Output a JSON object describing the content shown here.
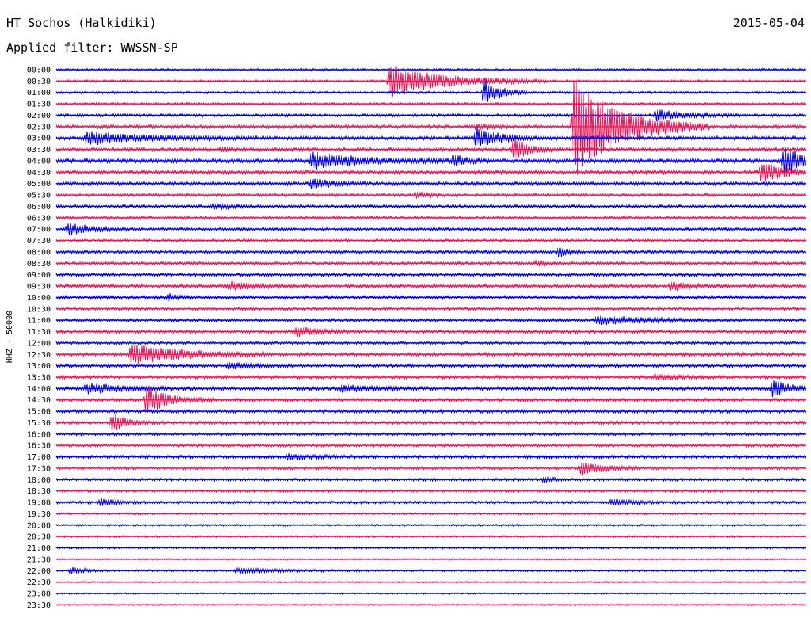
{
  "header": {
    "station": "HT Sochos (Halkidiki)",
    "date": "2015-05-04",
    "filter_label": "Applied filter: WWSSN-SP"
  },
  "chart_data": {
    "type": "line",
    "title": "HT Sochos (Halkidiki)",
    "ylabel": "HHZ - 50000",
    "xlabel": "",
    "colors": [
      "#0000ee",
      "#ee1155"
    ],
    "rows": [
      {
        "label": "00:00",
        "color": "#0000ee",
        "noise": 1.2,
        "events": []
      },
      {
        "label": "00:30",
        "color": "#ee1155",
        "noise": 1.2,
        "events": [
          {
            "t": 0.445,
            "amp": 20,
            "dur": 0.07
          }
        ]
      },
      {
        "label": "01:00",
        "color": "#0000ee",
        "noise": 1.2,
        "events": [
          {
            "t": 0.57,
            "amp": 18,
            "dur": 0.02
          }
        ]
      },
      {
        "label": "01:30",
        "color": "#ee1155",
        "noise": 1.2,
        "events": []
      },
      {
        "label": "02:00",
        "color": "#0000ee",
        "noise": 1.5,
        "events": [
          {
            "t": 0.8,
            "amp": 7,
            "dur": 0.04
          }
        ]
      },
      {
        "label": "02:30",
        "color": "#ee1155",
        "noise": 1.8,
        "events": [
          {
            "t": 0.69,
            "amp": 60,
            "dur": 0.06
          },
          {
            "t": 0.56,
            "amp": 3,
            "dur": 0.02
          }
        ]
      },
      {
        "label": "03:00",
        "color": "#0000ee",
        "noise": 1.8,
        "events": [
          {
            "t": 0.04,
            "amp": 8,
            "dur": 0.08
          },
          {
            "t": 0.56,
            "amp": 14,
            "dur": 0.03
          }
        ]
      },
      {
        "label": "03:30",
        "color": "#ee1155",
        "noise": 1.8,
        "events": [
          {
            "t": 0.61,
            "amp": 15,
            "dur": 0.02
          },
          {
            "t": 0.22,
            "amp": 3,
            "dur": 0.01
          }
        ]
      },
      {
        "label": "04:00",
        "color": "#0000ee",
        "noise": 2.0,
        "events": [
          {
            "t": 0.34,
            "amp": 10,
            "dur": 0.07
          },
          {
            "t": 0.53,
            "amp": 6,
            "dur": 0.02
          },
          {
            "t": 0.97,
            "amp": 20,
            "dur": 0.03
          }
        ]
      },
      {
        "label": "04:30",
        "color": "#ee1155",
        "noise": 2.0,
        "events": [
          {
            "t": 0.94,
            "amp": 14,
            "dur": 0.03
          }
        ]
      },
      {
        "label": "05:00",
        "color": "#0000ee",
        "noise": 1.8,
        "events": [
          {
            "t": 0.34,
            "amp": 6,
            "dur": 0.03
          }
        ]
      },
      {
        "label": "05:30",
        "color": "#ee1155",
        "noise": 1.6,
        "events": [
          {
            "t": 0.48,
            "amp": 3,
            "dur": 0.02
          }
        ]
      },
      {
        "label": "06:00",
        "color": "#0000ee",
        "noise": 1.6,
        "events": [
          {
            "t": 0.21,
            "amp": 3,
            "dur": 0.02
          }
        ]
      },
      {
        "label": "06:30",
        "color": "#ee1155",
        "noise": 1.6,
        "events": []
      },
      {
        "label": "07:00",
        "color": "#0000ee",
        "noise": 1.6,
        "events": [
          {
            "t": 0.015,
            "amp": 8,
            "dur": 0.03
          }
        ]
      },
      {
        "label": "07:30",
        "color": "#ee1155",
        "noise": 1.4,
        "events": []
      },
      {
        "label": "08:00",
        "color": "#0000ee",
        "noise": 1.6,
        "events": [
          {
            "t": 0.67,
            "amp": 8,
            "dur": 0.01
          }
        ]
      },
      {
        "label": "08:30",
        "color": "#ee1155",
        "noise": 1.6,
        "events": [
          {
            "t": 0.64,
            "amp": 4,
            "dur": 0.01
          }
        ]
      },
      {
        "label": "09:00",
        "color": "#0000ee",
        "noise": 1.6,
        "events": []
      },
      {
        "label": "09:30",
        "color": "#ee1155",
        "noise": 1.8,
        "events": [
          {
            "t": 0.23,
            "amp": 5,
            "dur": 0.03
          },
          {
            "t": 0.82,
            "amp": 6,
            "dur": 0.02
          }
        ]
      },
      {
        "label": "10:00",
        "color": "#0000ee",
        "noise": 1.8,
        "events": [
          {
            "t": 0.15,
            "amp": 5,
            "dur": 0.01
          }
        ]
      },
      {
        "label": "10:30",
        "color": "#ee1155",
        "noise": 1.4,
        "events": []
      },
      {
        "label": "11:00",
        "color": "#0000ee",
        "noise": 1.6,
        "events": [
          {
            "t": 0.72,
            "amp": 6,
            "dur": 0.06
          }
        ]
      },
      {
        "label": "11:30",
        "color": "#ee1155",
        "noise": 1.6,
        "events": [
          {
            "t": 0.32,
            "amp": 6,
            "dur": 0.03
          }
        ]
      },
      {
        "label": "12:00",
        "color": "#0000ee",
        "noise": 1.4,
        "events": []
      },
      {
        "label": "12:30",
        "color": "#ee1155",
        "noise": 1.8,
        "events": [
          {
            "t": 0.1,
            "amp": 14,
            "dur": 0.06
          }
        ]
      },
      {
        "label": "13:00",
        "color": "#0000ee",
        "noise": 1.6,
        "events": [
          {
            "t": 0.23,
            "amp": 4,
            "dur": 0.03
          }
        ]
      },
      {
        "label": "13:30",
        "color": "#ee1155",
        "noise": 1.6,
        "events": [
          {
            "t": 0.8,
            "amp": 3,
            "dur": 0.03
          }
        ]
      },
      {
        "label": "14:00",
        "color": "#0000ee",
        "noise": 1.8,
        "events": [
          {
            "t": 0.04,
            "amp": 6,
            "dur": 0.05
          },
          {
            "t": 0.38,
            "amp": 4,
            "dur": 0.04
          },
          {
            "t": 0.955,
            "amp": 12,
            "dur": 0.02
          }
        ]
      },
      {
        "label": "14:30",
        "color": "#ee1155",
        "noise": 1.6,
        "events": [
          {
            "t": 0.12,
            "amp": 18,
            "dur": 0.03
          }
        ]
      },
      {
        "label": "15:00",
        "color": "#0000ee",
        "noise": 1.6,
        "events": []
      },
      {
        "label": "15:30",
        "color": "#ee1155",
        "noise": 1.6,
        "events": [
          {
            "t": 0.075,
            "amp": 12,
            "dur": 0.02
          }
        ]
      },
      {
        "label": "16:00",
        "color": "#0000ee",
        "noise": 1.4,
        "events": []
      },
      {
        "label": "16:30",
        "color": "#ee1155",
        "noise": 1.4,
        "events": []
      },
      {
        "label": "17:00",
        "color": "#0000ee",
        "noise": 1.6,
        "events": [
          {
            "t": 0.31,
            "amp": 4,
            "dur": 0.03
          }
        ]
      },
      {
        "label": "17:30",
        "color": "#ee1155",
        "noise": 1.4,
        "events": [
          {
            "t": 0.7,
            "amp": 9,
            "dur": 0.03
          }
        ]
      },
      {
        "label": "18:00",
        "color": "#0000ee",
        "noise": 1.4,
        "events": [
          {
            "t": 0.65,
            "amp": 4,
            "dur": 0.01
          }
        ]
      },
      {
        "label": "18:30",
        "color": "#ee1155",
        "noise": 1.2,
        "events": []
      },
      {
        "label": "19:00",
        "color": "#0000ee",
        "noise": 1.4,
        "events": [
          {
            "t": 0.06,
            "amp": 5,
            "dur": 0.02
          },
          {
            "t": 0.74,
            "amp": 4,
            "dur": 0.03
          }
        ]
      },
      {
        "label": "19:30",
        "color": "#ee1155",
        "noise": 1.0,
        "events": []
      },
      {
        "label": "20:00",
        "color": "#0000ee",
        "noise": 1.0,
        "events": []
      },
      {
        "label": "20:30",
        "color": "#ee1155",
        "noise": 1.0,
        "events": []
      },
      {
        "label": "21:00",
        "color": "#0000ee",
        "noise": 1.0,
        "events": []
      },
      {
        "label": "21:30",
        "color": "#ee1155",
        "noise": 0.8,
        "events": []
      },
      {
        "label": "22:00",
        "color": "#0000ee",
        "noise": 1.0,
        "events": [
          {
            "t": 0.02,
            "amp": 4,
            "dur": 0.02
          },
          {
            "t": 0.24,
            "amp": 3,
            "dur": 0.06
          }
        ]
      },
      {
        "label": "22:30",
        "color": "#ee1155",
        "noise": 0.8,
        "events": []
      },
      {
        "label": "23:00",
        "color": "#0000ee",
        "noise": 0.8,
        "events": []
      },
      {
        "label": "23:30",
        "color": "#ee1155",
        "noise": 0.8,
        "events": []
      }
    ]
  }
}
